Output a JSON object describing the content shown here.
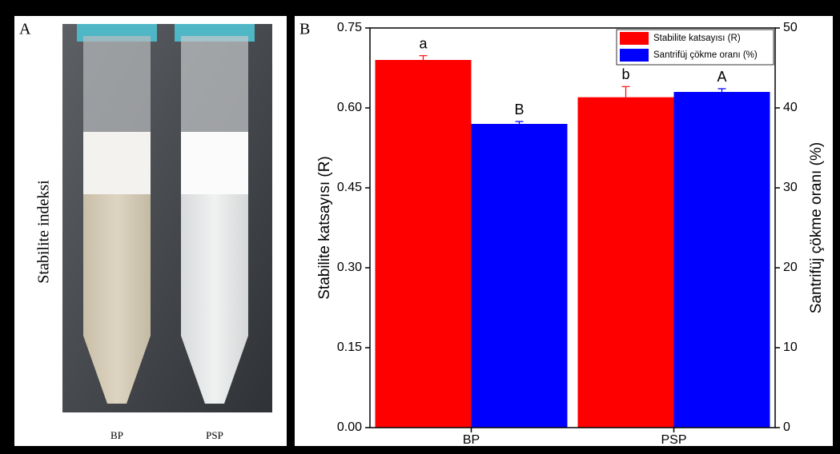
{
  "panel_a": {
    "label": "A",
    "title": "Stabilite indeksi",
    "tube_labels": [
      "BP",
      "PSP"
    ]
  },
  "chart_data": {
    "type": "bar",
    "panel_label": "B",
    "categories": [
      "BP",
      "PSP"
    ],
    "series": [
      {
        "name": "Stabilite katsayısı (R)",
        "color": "#ff0000",
        "values": [
          0.69,
          0.62
        ],
        "errors": [
          0.008,
          0.02
        ],
        "significance": [
          "a",
          "b"
        ]
      },
      {
        "name": "Santrifüj çökme oranı (%)",
        "color": "#0000ff",
        "axis": "y2",
        "values": [
          38,
          42
        ],
        "errors": [
          0.3,
          0.4
        ],
        "significance": [
          "B",
          "A"
        ]
      }
    ],
    "ylabel": "Stabilite katsayısı (R)",
    "y2label": "Santrifüj çökme oranı (%)",
    "ylim": [
      0,
      0.75
    ],
    "yticks": [
      {
        "value": 0,
        "label": "0.00"
      },
      {
        "value": 0.15,
        "label": "0.15"
      },
      {
        "value": 0.3,
        "label": "0.30"
      },
      {
        "value": 0.45,
        "label": "0.45"
      },
      {
        "value": 0.6,
        "label": "0.60"
      },
      {
        "value": 0.75,
        "label": "0.75"
      }
    ],
    "y2lim": [
      0,
      50
    ],
    "y2ticks": [
      0,
      10,
      20,
      30,
      40,
      50
    ],
    "legend": "upper right"
  }
}
